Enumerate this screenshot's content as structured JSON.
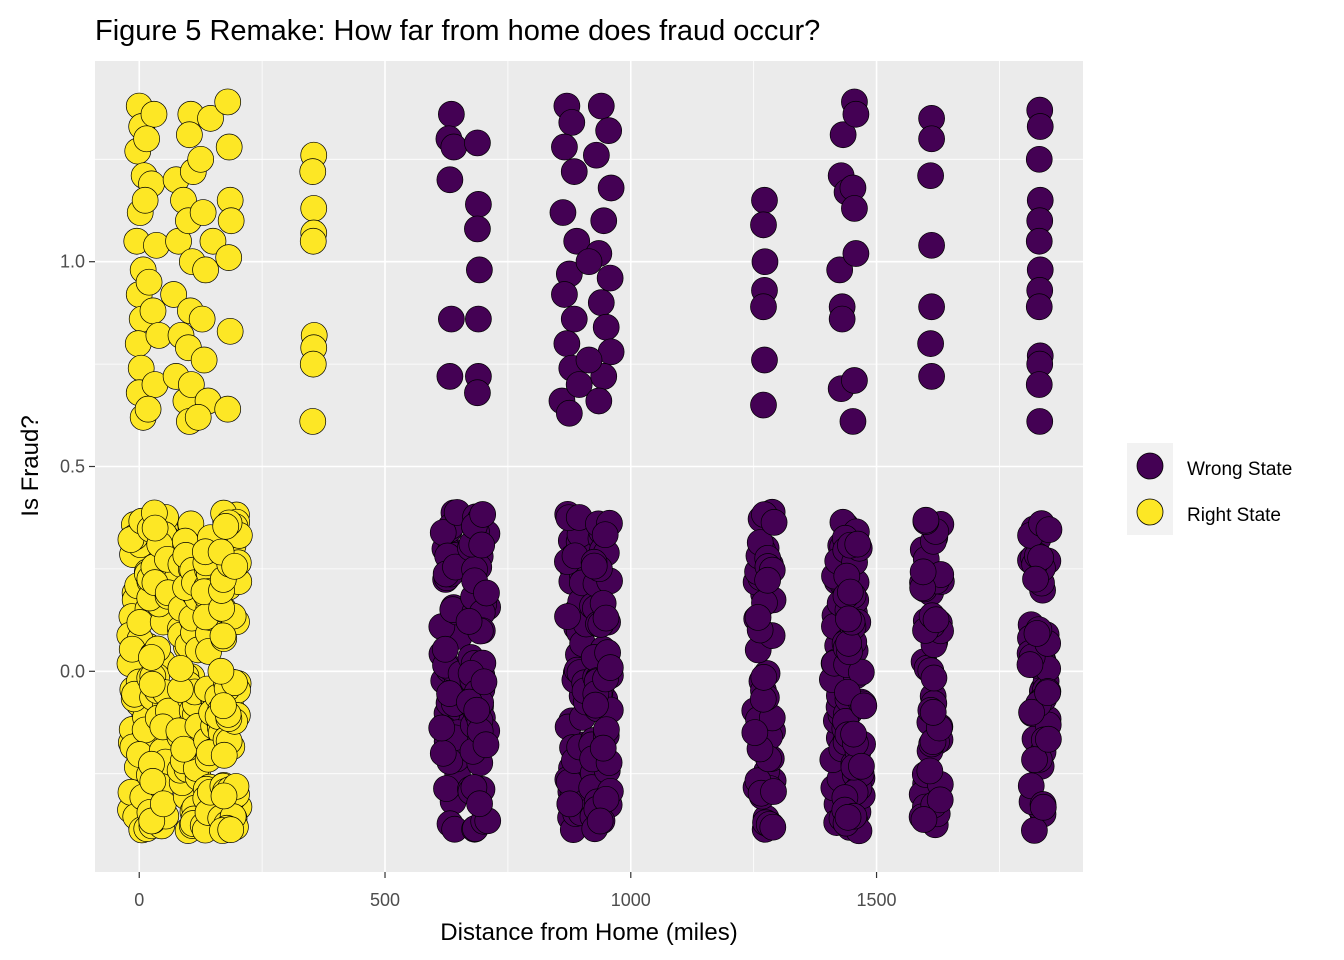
{
  "chart_data": {
    "type": "scatter",
    "title": "Figure 5 Remake: How far from home does fraud occur?",
    "xlabel": "Distance from Home (miles)",
    "ylabel": "Is Fraud?",
    "xlim": [
      -90,
      1920
    ],
    "ylim": [
      -0.49,
      1.49
    ],
    "x_ticks": [
      0,
      500,
      1000,
      1500
    ],
    "x_tick_labels": [
      "0",
      "500",
      "1000",
      "1500"
    ],
    "y_ticks": [
      0.0,
      0.5,
      1.0
    ],
    "y_tick_labels": [
      "0.0",
      "0.5",
      "1.0"
    ],
    "grid": true,
    "jitter": {
      "y": 0.4
    },
    "legend": {
      "position": "right",
      "entries": [
        {
          "label": "Wrong State",
          "color": "#440154"
        },
        {
          "label": "Right State",
          "color": "#fde725"
        }
      ]
    },
    "series": [
      {
        "name": "Wrong State",
        "color": "#440154",
        "clusters": [
          {
            "x": 635,
            "is_fraud": 0
          },
          {
            "x": 690,
            "is_fraud": 0
          },
          {
            "x": 890,
            "is_fraud": 0
          },
          {
            "x": 940,
            "is_fraud": 0
          },
          {
            "x": 1272,
            "is_fraud": 0
          },
          {
            "x": 1430,
            "is_fraud": 0
          },
          {
            "x": 1455,
            "is_fraud": 0
          },
          {
            "x": 1612,
            "is_fraud": 0
          },
          {
            "x": 1832,
            "is_fraud": 0
          }
        ],
        "fraud_points": [
          [
            635,
            1.36
          ],
          [
            630,
            1.3
          ],
          [
            640,
            1.28
          ],
          [
            632,
            1.2
          ],
          [
            635,
            0.86
          ],
          [
            632,
            0.72
          ],
          [
            688,
            1.29
          ],
          [
            690,
            1.14
          ],
          [
            688,
            1.08
          ],
          [
            692,
            0.98
          ],
          [
            690,
            0.86
          ],
          [
            690,
            0.72
          ],
          [
            688,
            0.68
          ],
          [
            870,
            1.38
          ],
          [
            880,
            1.34
          ],
          [
            865,
            1.28
          ],
          [
            885,
            1.22
          ],
          [
            862,
            1.12
          ],
          [
            890,
            1.05
          ],
          [
            875,
            0.97
          ],
          [
            865,
            0.92
          ],
          [
            885,
            0.86
          ],
          [
            870,
            0.8
          ],
          [
            880,
            0.74
          ],
          [
            860,
            0.66
          ],
          [
            875,
            0.63
          ],
          [
            895,
            0.7
          ],
          [
            940,
            1.38
          ],
          [
            955,
            1.32
          ],
          [
            930,
            1.26
          ],
          [
            960,
            1.18
          ],
          [
            945,
            1.1
          ],
          [
            935,
            1.02
          ],
          [
            958,
            0.96
          ],
          [
            940,
            0.9
          ],
          [
            950,
            0.84
          ],
          [
            960,
            0.78
          ],
          [
            945,
            0.72
          ],
          [
            935,
            0.66
          ],
          [
            915,
            1.0
          ],
          [
            915,
            0.76
          ],
          [
            1272,
            1.15
          ],
          [
            1270,
            1.09
          ],
          [
            1273,
            1.0
          ],
          [
            1272,
            0.93
          ],
          [
            1270,
            0.89
          ],
          [
            1272,
            0.76
          ],
          [
            1270,
            0.65
          ],
          [
            1432,
            1.31
          ],
          [
            1428,
            1.21
          ],
          [
            1440,
            1.17
          ],
          [
            1425,
            0.98
          ],
          [
            1430,
            0.89
          ],
          [
            1430,
            0.86
          ],
          [
            1428,
            0.69
          ],
          [
            1455,
            1.39
          ],
          [
            1458,
            1.36
          ],
          [
            1452,
            1.18
          ],
          [
            1455,
            1.13
          ],
          [
            1458,
            1.02
          ],
          [
            1455,
            0.71
          ],
          [
            1452,
            0.61
          ],
          [
            1612,
            1.35
          ],
          [
            1612,
            1.3
          ],
          [
            1610,
            1.21
          ],
          [
            1612,
            1.04
          ],
          [
            1612,
            0.89
          ],
          [
            1610,
            0.8
          ],
          [
            1612,
            0.72
          ],
          [
            1832,
            1.37
          ],
          [
            1833,
            1.33
          ],
          [
            1831,
            1.25
          ],
          [
            1833,
            1.15
          ],
          [
            1832,
            1.1
          ],
          [
            1831,
            1.05
          ],
          [
            1833,
            0.98
          ],
          [
            1832,
            0.93
          ],
          [
            1831,
            0.89
          ],
          [
            1833,
            0.77
          ],
          [
            1832,
            0.75
          ],
          [
            1831,
            0.7
          ],
          [
            1832,
            0.61
          ]
        ]
      },
      {
        "name": "Right State",
        "color": "#fde725",
        "clusters": [
          {
            "x": 0,
            "is_fraud": 0
          },
          {
            "x": 40,
            "is_fraud": 0
          },
          {
            "x": 100,
            "is_fraud": 0
          },
          {
            "x": 150,
            "is_fraud": 0
          },
          {
            "x": 185,
            "is_fraud": 0
          }
        ],
        "fraud_points": [
          [
            0,
            1.38
          ],
          [
            5,
            1.33
          ],
          [
            -3,
            1.27
          ],
          [
            10,
            1.21
          ],
          [
            2,
            1.12
          ],
          [
            -5,
            1.05
          ],
          [
            8,
            0.98
          ],
          [
            0,
            0.92
          ],
          [
            6,
            0.86
          ],
          [
            -2,
            0.8
          ],
          [
            4,
            0.74
          ],
          [
            0,
            0.68
          ],
          [
            8,
            0.62
          ],
          [
            30,
            1.36
          ],
          [
            25,
            1.19
          ],
          [
            35,
            1.04
          ],
          [
            28,
            0.88
          ],
          [
            32,
            0.7
          ],
          [
            20,
            0.95
          ],
          [
            15,
            1.3
          ],
          [
            18,
            0.64
          ],
          [
            40,
            0.82
          ],
          [
            12,
            1.15
          ],
          [
            75,
            1.2
          ],
          [
            90,
            1.15
          ],
          [
            80,
            1.05
          ],
          [
            70,
            0.92
          ],
          [
            85,
            0.82
          ],
          [
            75,
            0.72
          ],
          [
            95,
            0.66
          ],
          [
            105,
            1.36
          ],
          [
            102,
            1.31
          ],
          [
            110,
            1.22
          ],
          [
            100,
            1.1
          ],
          [
            108,
            1.0
          ],
          [
            104,
            0.88
          ],
          [
            100,
            0.79
          ],
          [
            106,
            0.7
          ],
          [
            102,
            0.61
          ],
          [
            125,
            1.25
          ],
          [
            130,
            1.12
          ],
          [
            135,
            0.98
          ],
          [
            128,
            0.86
          ],
          [
            132,
            0.76
          ],
          [
            140,
            0.66
          ],
          [
            145,
            1.35
          ],
          [
            150,
            1.05
          ],
          [
            120,
            0.62
          ],
          [
            180,
            1.39
          ],
          [
            183,
            1.28
          ],
          [
            185,
            1.15
          ],
          [
            187,
            1.1
          ],
          [
            182,
            1.01
          ],
          [
            185,
            0.83
          ],
          [
            180,
            0.64
          ],
          [
            355,
            1.26
          ],
          [
            353,
            1.22
          ],
          [
            355,
            1.13
          ],
          [
            355,
            1.07
          ],
          [
            354,
            1.05
          ],
          [
            356,
            0.82
          ],
          [
            355,
            0.79
          ],
          [
            354,
            0.75
          ],
          [
            353,
            0.61
          ]
        ]
      }
    ]
  }
}
